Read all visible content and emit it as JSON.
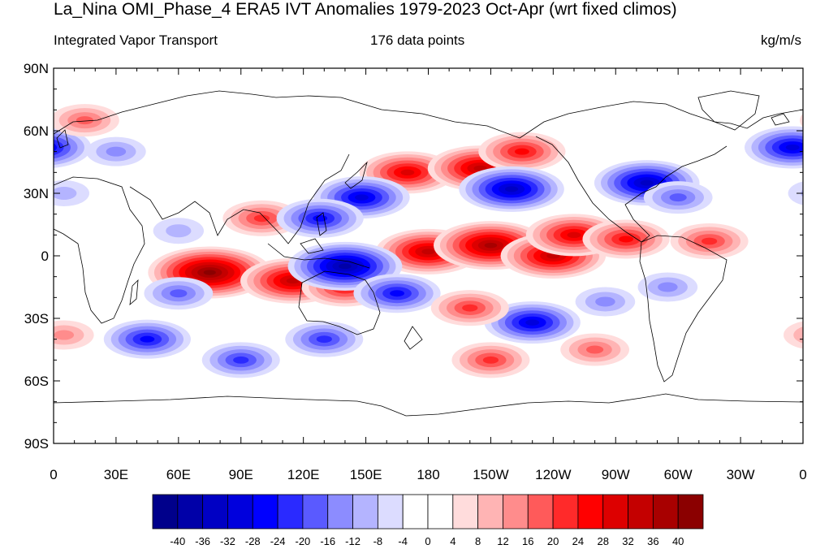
{
  "title": "La_Nina OMI_Phase_4 ERA5 IVT Anomalies 1979-2023 Oct-Apr (wrt fixed climos)",
  "subtitle_left": "Integrated Vapor Transport",
  "subtitle_center": "176 data points",
  "subtitle_right": "kg/m/s",
  "lat_labels": [
    "90N",
    "60N",
    "30N",
    "0",
    "30S",
    "60S",
    "90S"
  ],
  "lon_labels": [
    "0",
    "30E",
    "60E",
    "90E",
    "120E",
    "150E",
    "180",
    "150W",
    "120W",
    "90W",
    "60W",
    "30W",
    "0"
  ],
  "colorbar": {
    "labels": [
      "-40",
      "-36",
      "-32",
      "-28",
      "-24",
      "-20",
      "-16",
      "-12",
      "-8",
      "-4",
      "0",
      "4",
      "8",
      "12",
      "16",
      "20",
      "24",
      "28",
      "32",
      "36",
      "40"
    ],
    "colors": [
      "#00008b",
      "#0000a8",
      "#0000c4",
      "#0000dd",
      "#0000ff",
      "#2a2aff",
      "#5a5aff",
      "#8c8cff",
      "#b4b4ff",
      "#dcdcff",
      "#ffffff",
      "#ffffff",
      "#ffdcdc",
      "#ffb4b4",
      "#ff8c8c",
      "#ff5a5a",
      "#ff2a2a",
      "#ff0000",
      "#dd0000",
      "#c40000",
      "#a80000",
      "#8b0000"
    ]
  },
  "anomalies": [
    {
      "lon": 75,
      "lat": -8,
      "value": 40
    },
    {
      "lon": 115,
      "lat": -12,
      "value": 32
    },
    {
      "lon": 100,
      "lat": 18,
      "value": 20
    },
    {
      "lon": 140,
      "lat": -15,
      "value": 24
    },
    {
      "lon": 180,
      "lat": 2,
      "value": 32
    },
    {
      "lon": -150,
      "lat": 5,
      "value": 36
    },
    {
      "lon": -120,
      "lat": 0,
      "value": 32
    },
    {
      "lon": -110,
      "lat": 10,
      "value": 28
    },
    {
      "lon": -85,
      "lat": 8,
      "value": 24
    },
    {
      "lon": -45,
      "lat": 7,
      "value": 20
    },
    {
      "lon": 170,
      "lat": 40,
      "value": 28
    },
    {
      "lon": -155,
      "lat": 42,
      "value": 32
    },
    {
      "lon": -135,
      "lat": 50,
      "value": 24
    },
    {
      "lon": -140,
      "lat": 32,
      "value": -32
    },
    {
      "lon": 148,
      "lat": 28,
      "value": -28
    },
    {
      "lon": 128,
      "lat": 18,
      "value": -24
    },
    {
      "lon": 140,
      "lat": -5,
      "value": -36
    },
    {
      "lon": 165,
      "lat": -18,
      "value": -24
    },
    {
      "lon": -130,
      "lat": -32,
      "value": -28
    },
    {
      "lon": -95,
      "lat": -22,
      "value": -12
    },
    {
      "lon": -75,
      "lat": 35,
      "value": -32
    },
    {
      "lon": -60,
      "lat": 28,
      "value": -16
    },
    {
      "lon": -5,
      "lat": 52,
      "value": -28
    },
    {
      "lon": 45,
      "lat": -40,
      "value": -24
    },
    {
      "lon": 90,
      "lat": -50,
      "value": -20
    },
    {
      "lon": 30,
      "lat": 50,
      "value": -12
    },
    {
      "lon": 15,
      "lat": 65,
      "value": 16
    },
    {
      "lon": 5,
      "lat": -38,
      "value": 12
    },
    {
      "lon": -150,
      "lat": -50,
      "value": 20
    },
    {
      "lon": -100,
      "lat": -45,
      "value": 16
    },
    {
      "lon": 130,
      "lat": -40,
      "value": -20
    },
    {
      "lon": 60,
      "lat": 12,
      "value": -8
    },
    {
      "lon": 60,
      "lat": -18,
      "value": -16
    },
    {
      "lon": -160,
      "lat": -25,
      "value": 20
    },
    {
      "lon": -65,
      "lat": -15,
      "value": -12
    },
    {
      "lon": 5,
      "lat": 30,
      "value": -8
    }
  ]
}
